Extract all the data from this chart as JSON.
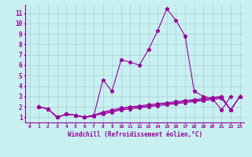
{
  "xlabel": "Windchill (Refroidissement éolien,°C)",
  "bg_color": "#c8f0f0",
  "line_color": "#990099",
  "grid_color": "#99bbcc",
  "xlim": [
    -0.5,
    23.5
  ],
  "ylim": [
    0.5,
    11.8
  ],
  "xticks": [
    0,
    1,
    2,
    3,
    4,
    5,
    6,
    7,
    8,
    9,
    10,
    11,
    12,
    13,
    14,
    15,
    16,
    17,
    18,
    19,
    20,
    21,
    22,
    23
  ],
  "yticks": [
    1,
    2,
    3,
    4,
    5,
    6,
    7,
    8,
    9,
    10,
    11
  ],
  "series": [
    {
      "x": [
        1,
        2,
        3,
        4,
        5,
        6,
        7,
        8,
        9,
        10,
        11,
        12,
        13,
        14,
        15,
        16,
        17,
        18,
        19,
        20,
        21,
        22,
        23
      ],
      "y": [
        2.0,
        1.8,
        1.0,
        1.3,
        1.2,
        1.0,
        1.1,
        4.6,
        3.5,
        6.5,
        6.3,
        6.0,
        7.5,
        9.3,
        11.4,
        10.3,
        8.8,
        3.5,
        3.0,
        2.8,
        1.7,
        3.0,
        null
      ]
    },
    {
      "x": [
        1,
        2,
        3,
        4,
        5,
        6,
        7,
        8,
        9,
        10,
        11,
        12,
        13,
        14,
        15,
        16,
        17,
        18,
        19,
        20,
        21,
        22,
        23
      ],
      "y": [
        2.0,
        1.8,
        1.0,
        1.3,
        1.2,
        1.0,
        1.2,
        1.5,
        1.7,
        1.9,
        2.0,
        2.1,
        2.2,
        2.3,
        2.4,
        2.5,
        2.6,
        2.7,
        2.8,
        2.9,
        3.0,
        1.7,
        3.0
      ]
    },
    {
      "x": [
        1,
        2,
        3,
        4,
        5,
        6,
        7,
        8,
        9,
        10,
        11,
        12,
        13,
        14,
        15,
        16,
        17,
        18,
        19,
        20,
        21,
        22,
        23
      ],
      "y": [
        2.0,
        1.8,
        1.0,
        1.3,
        1.2,
        1.0,
        1.2,
        1.4,
        1.6,
        1.8,
        1.9,
        2.0,
        2.1,
        2.2,
        2.3,
        2.4,
        2.5,
        2.6,
        2.7,
        2.8,
        2.9,
        1.7,
        3.0
      ]
    },
    {
      "x": [
        1,
        2,
        3,
        4,
        5,
        6,
        7,
        8,
        9,
        10,
        11,
        12,
        13,
        14,
        15,
        16,
        17,
        18,
        19,
        20,
        21,
        22,
        23
      ],
      "y": [
        2.0,
        1.8,
        1.0,
        1.3,
        1.2,
        1.0,
        1.2,
        1.3,
        1.5,
        1.7,
        1.8,
        1.9,
        2.0,
        2.1,
        2.2,
        2.3,
        2.4,
        2.5,
        2.6,
        2.7,
        2.8,
        1.7,
        3.0
      ]
    }
  ]
}
